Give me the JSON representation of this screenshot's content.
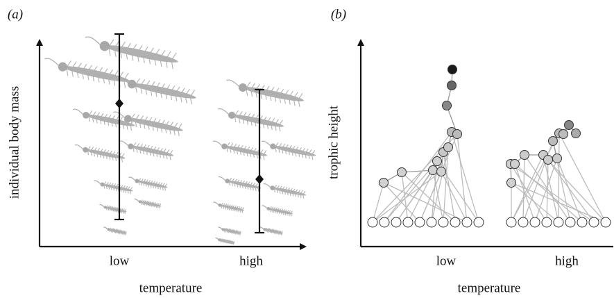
{
  "panel_a": {
    "label": "(a)",
    "y_label": "individual body mass",
    "x_label": "temperature",
    "categories": [
      "low",
      "high"
    ]
  },
  "panel_b": {
    "label": "(b)",
    "y_label": "trophic height",
    "x_label": "temperature",
    "categories": [
      "low",
      "high"
    ]
  }
}
